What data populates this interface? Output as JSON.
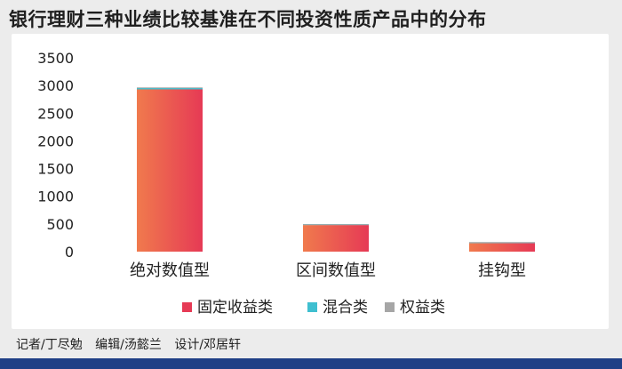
{
  "title": "银行理财三种业绩比较基准在不同投资性质产品中的分布",
  "credits": {
    "reporter": "记者/丁尽勉",
    "editor": "编辑/汤懿兰",
    "designer": "设计/邓居轩"
  },
  "colors": {
    "fixed_income_from": "#f07a4d",
    "fixed_income_to": "#e63a55",
    "mixed": "#3fbfd0",
    "equity": "#a6a6a6",
    "footer": "#1f3f86"
  },
  "chart_data": {
    "type": "bar",
    "stacked": true,
    "categories": [
      "绝对数值型",
      "区间数值型",
      "挂钩型"
    ],
    "series": [
      {
        "name": "固定收益类",
        "values": [
          2930,
          480,
          155
        ]
      },
      {
        "name": "混合类",
        "values": [
          30,
          15,
          15
        ]
      },
      {
        "name": "权益类",
        "values": [
          5,
          2,
          2
        ]
      }
    ],
    "ylim": [
      0,
      3500
    ],
    "yticks": [
      0,
      500,
      1000,
      1500,
      2000,
      2500,
      3000,
      3500
    ],
    "grid": false,
    "legend": "bottom"
  }
}
